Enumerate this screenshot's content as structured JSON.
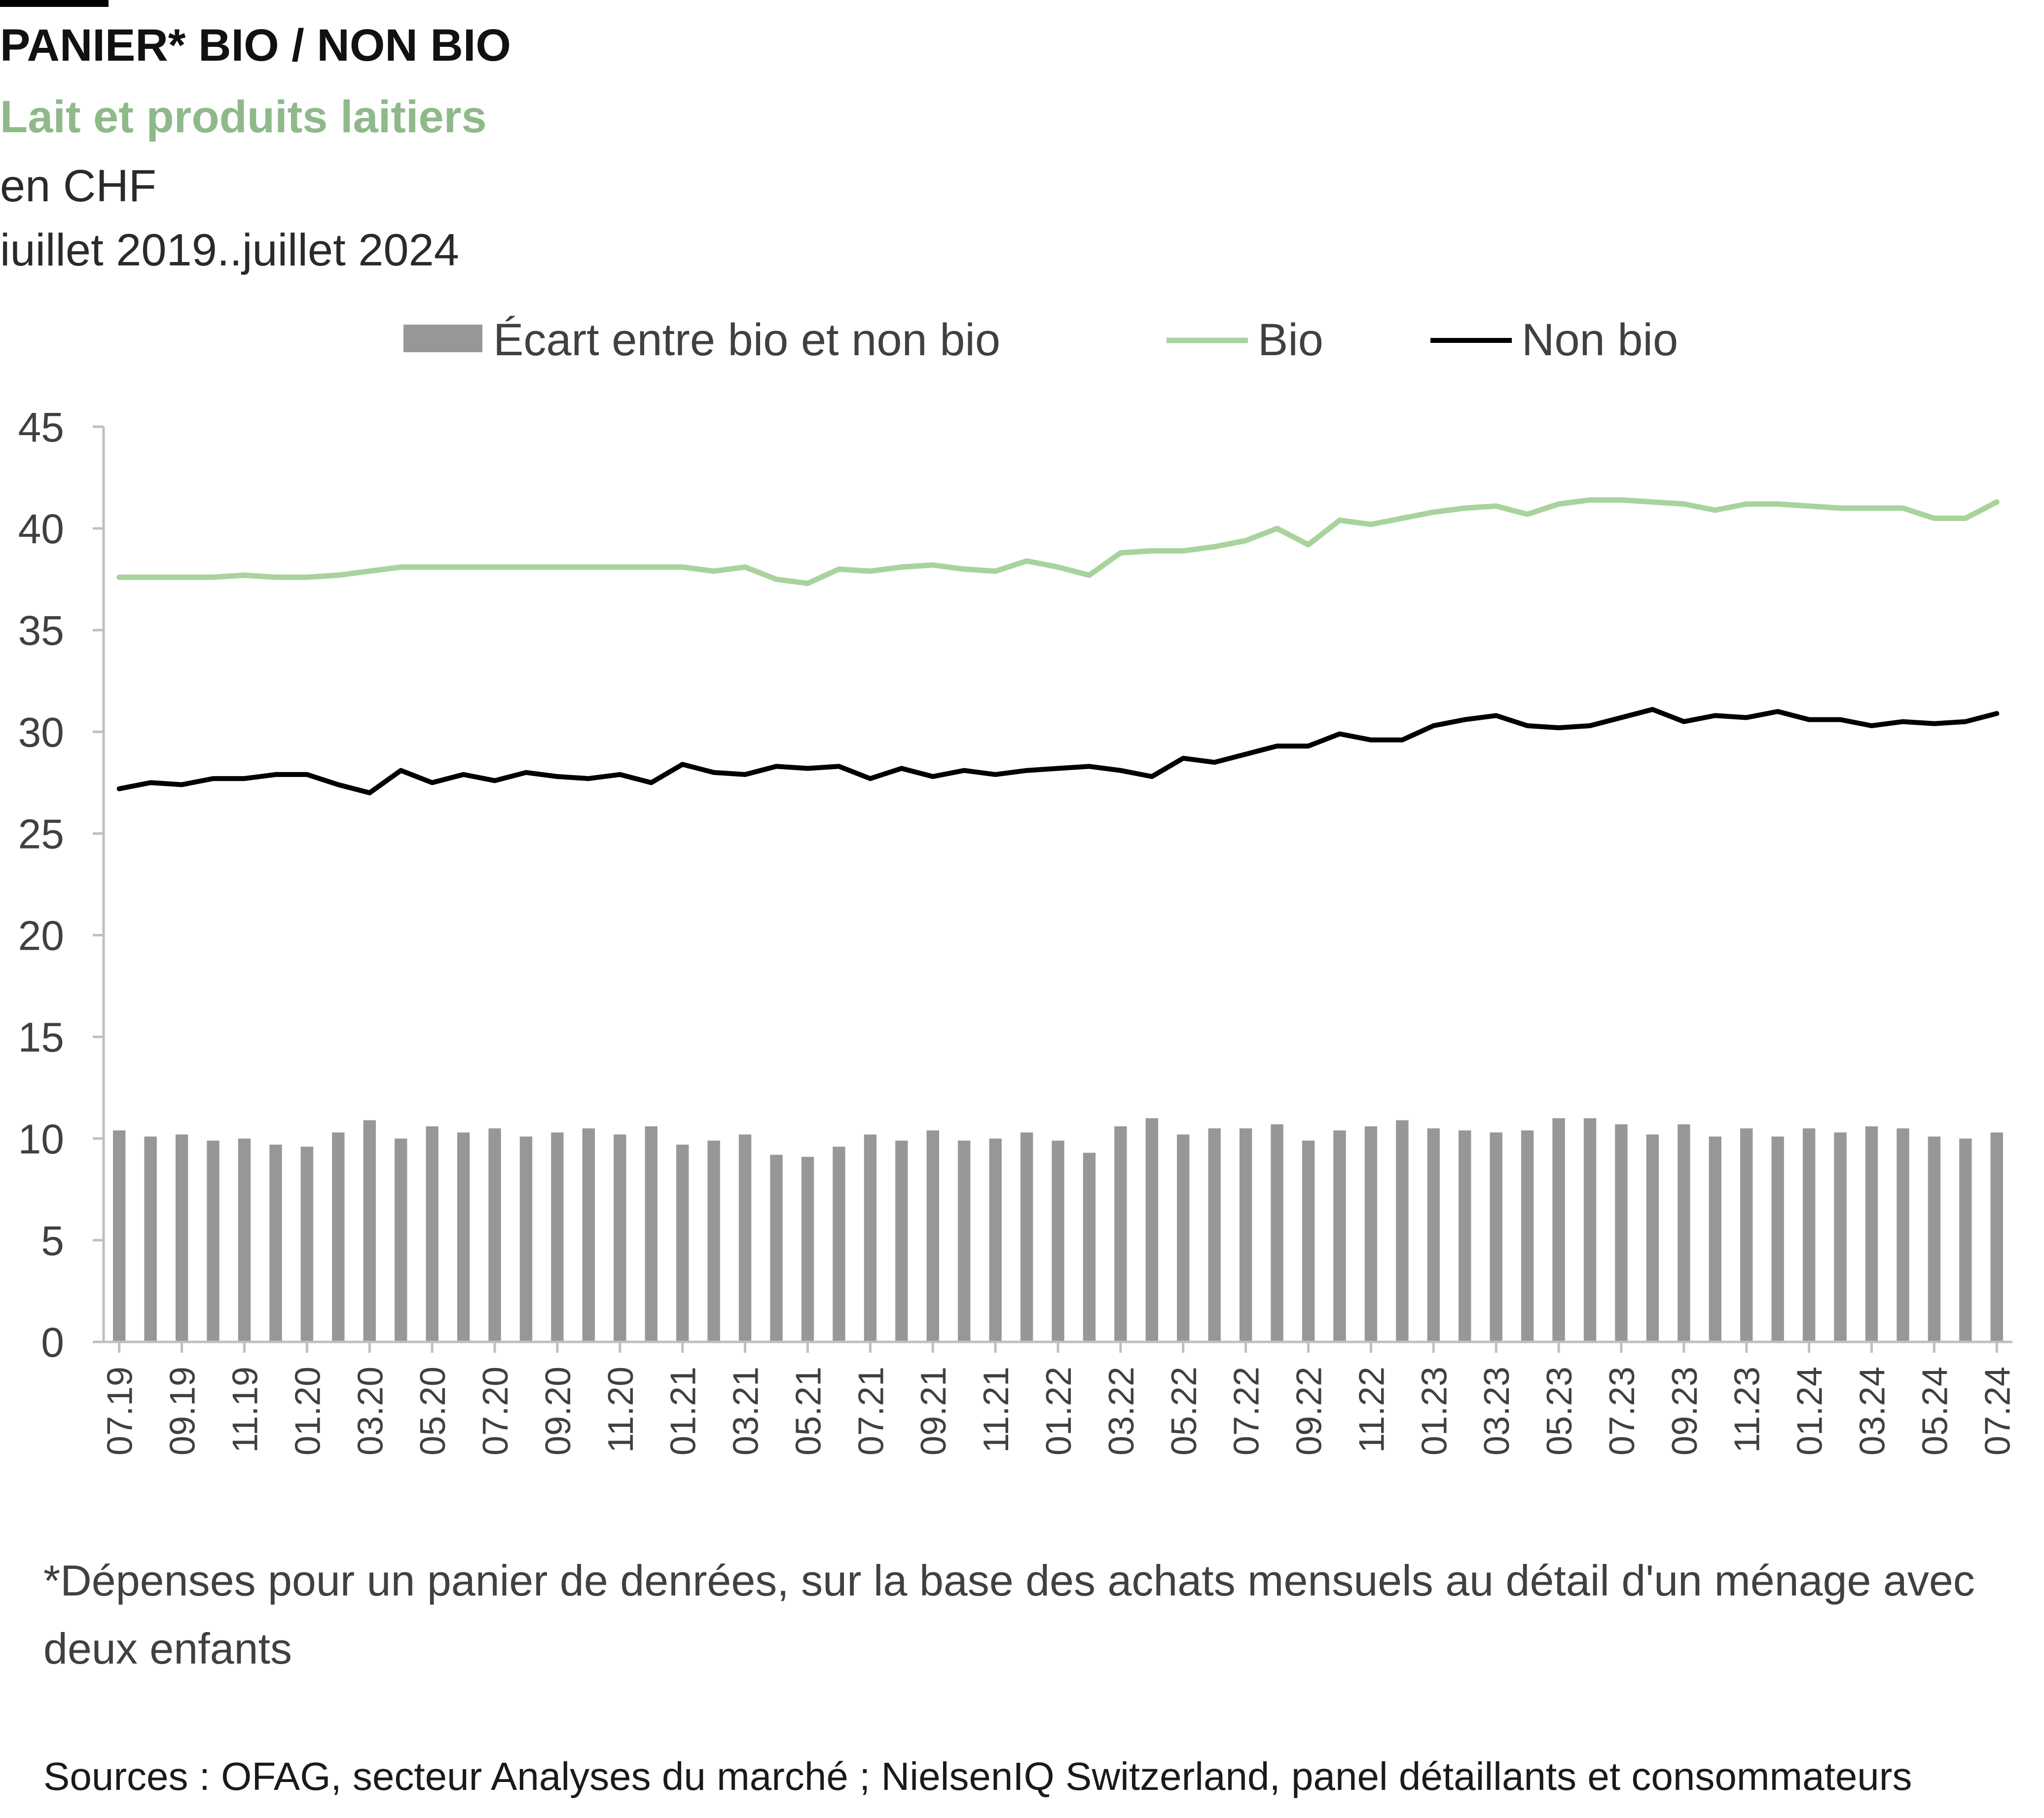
{
  "header": {
    "title": "PANIER* BIO / NON BIO",
    "subtitle": "Lait et produits laitiers",
    "unit": "en CHF",
    "period": "iuillet 2019..juillet 2024"
  },
  "footnote": "*Dépenses pour un panier de denrées, sur la base des achats mensuels au détail d'un ménage avec deux enfants",
  "sources": "Sources : OFAG, secteur Analyses du marché ; NielsenIQ Switzerland, panel détaillants et consommateurs",
  "colors": {
    "bio": "#a9d39c",
    "non_bio": "#000000",
    "ecart": "#97979a",
    "axis": "#bfbfbf"
  },
  "chart_data": {
    "type": "bar+line",
    "ylim": [
      0,
      45
    ],
    "yticks": [
      0,
      5,
      10,
      15,
      20,
      25,
      30,
      35,
      40,
      45
    ],
    "grid": false,
    "legend_position": "top-center",
    "x": [
      "07.19",
      "08.19",
      "09.19",
      "10.19",
      "11.19",
      "12.19",
      "01.20",
      "02.20",
      "03.20",
      "04.20",
      "05.20",
      "06.20",
      "07.20",
      "08.20",
      "09.20",
      "10.20",
      "11.20",
      "12.20",
      "01.21",
      "02.21",
      "03.21",
      "04.21",
      "05.21",
      "06.21",
      "07.21",
      "08.21",
      "09.21",
      "10.21",
      "11.21",
      "12.21",
      "01.22",
      "02.22",
      "03.22",
      "04.22",
      "05.22",
      "06.22",
      "07.22",
      "08.22",
      "09.22",
      "10.22",
      "11.22",
      "12.22",
      "01.23",
      "02.23",
      "03.23",
      "04.23",
      "05.23",
      "06.23",
      "07.23",
      "08.23",
      "09.23",
      "10.23",
      "11.23",
      "12.23",
      "01.24",
      "02.24",
      "03.24",
      "04.24",
      "05.24",
      "06.24",
      "07.24"
    ],
    "x_tick_labels": [
      "07.19",
      "09.19",
      "11.19",
      "01.20",
      "03.20",
      "05.20",
      "07.20",
      "09.20",
      "11.20",
      "01.21",
      "03.21",
      "05.21",
      "07.21",
      "09.21",
      "11.21",
      "01.22",
      "03.22",
      "05.22",
      "07.22",
      "09.22",
      "11.22",
      "01.23",
      "03.23",
      "05.23",
      "07.23",
      "09.23",
      "11.23",
      "01.24",
      "03.24",
      "05.24",
      "07.24"
    ],
    "series": [
      {
        "name": "Écart entre bio et non bio",
        "type": "bar",
        "values": [
          10.4,
          10.1,
          10.2,
          9.9,
          10.0,
          9.7,
          9.6,
          10.3,
          10.9,
          10.0,
          10.6,
          10.3,
          10.5,
          10.1,
          10.3,
          10.5,
          10.2,
          10.6,
          9.7,
          9.9,
          10.2,
          9.2,
          9.1,
          9.6,
          10.2,
          9.9,
          10.4,
          9.9,
          10.0,
          10.3,
          9.9,
          9.3,
          10.6,
          11.0,
          10.2,
          10.5,
          10.5,
          10.7,
          9.9,
          10.4,
          10.6,
          10.9,
          10.5,
          10.4,
          10.3,
          10.4,
          11.0,
          11.0,
          10.7,
          10.2,
          10.7,
          10.1,
          10.5,
          10.1,
          10.5,
          10.3,
          10.6,
          10.5,
          10.1,
          10.0,
          10.3
        ]
      },
      {
        "name": "Bio",
        "type": "line",
        "values": [
          37.6,
          37.6,
          37.6,
          37.6,
          37.7,
          37.6,
          37.6,
          37.7,
          37.9,
          38.1,
          38.1,
          38.1,
          38.1,
          38.1,
          38.1,
          38.1,
          38.1,
          38.1,
          38.1,
          37.9,
          38.1,
          37.5,
          37.3,
          38.0,
          37.9,
          38.1,
          38.2,
          38.0,
          37.9,
          38.4,
          38.1,
          37.7,
          38.8,
          38.9,
          38.9,
          39.1,
          39.4,
          40.0,
          39.2,
          40.4,
          40.2,
          40.5,
          40.8,
          41.0,
          41.1,
          40.7,
          41.2,
          41.4,
          41.4,
          41.3,
          41.2,
          40.9,
          41.2,
          41.2,
          41.1,
          41.0,
          41.0,
          41.0,
          40.5,
          40.5,
          41.3
        ]
      },
      {
        "name": "Non bio",
        "type": "line",
        "values": [
          27.2,
          27.5,
          27.4,
          27.7,
          27.7,
          27.9,
          27.9,
          27.4,
          27.0,
          28.1,
          27.5,
          27.9,
          27.6,
          28.0,
          27.8,
          27.7,
          27.9,
          27.5,
          28.4,
          28.0,
          27.9,
          28.3,
          28.2,
          28.3,
          27.7,
          28.2,
          27.8,
          28.1,
          27.9,
          28.1,
          28.2,
          28.3,
          28.1,
          27.8,
          28.7,
          28.5,
          28.9,
          29.3,
          29.3,
          29.9,
          29.6,
          29.6,
          30.3,
          30.6,
          30.8,
          30.3,
          30.2,
          30.3,
          30.7,
          31.1,
          30.5,
          30.8,
          30.7,
          31.0,
          30.6,
          30.6,
          30.3,
          30.5,
          30.4,
          30.5,
          30.9
        ]
      }
    ]
  }
}
